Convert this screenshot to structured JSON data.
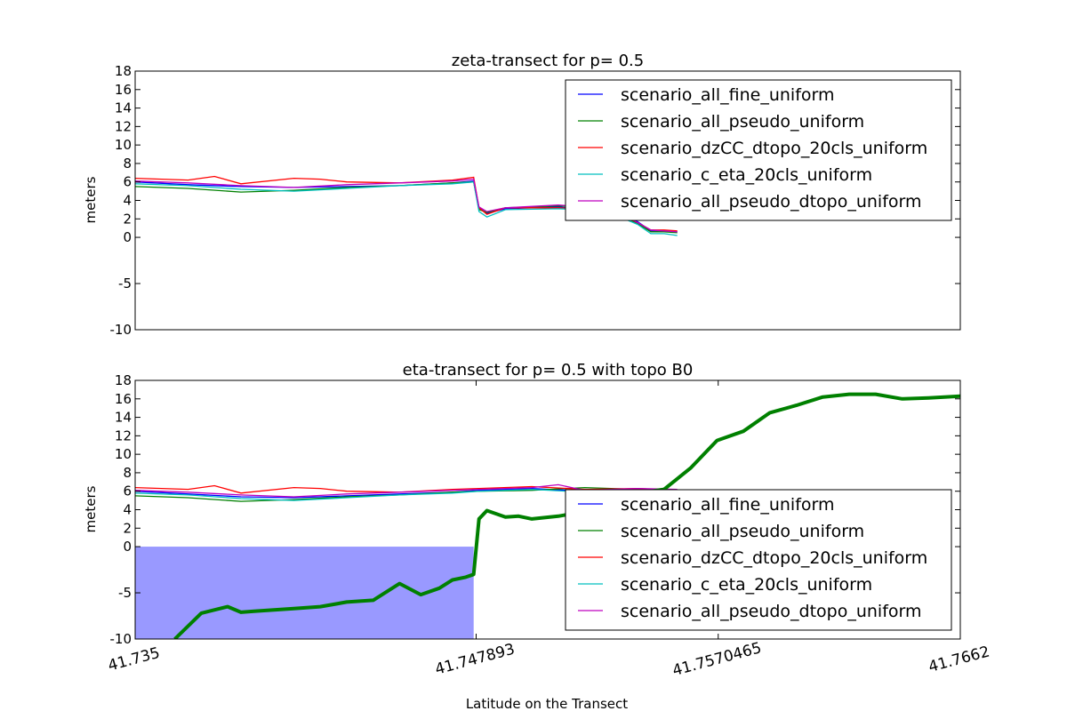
{
  "xlabel": "Latitude on the Transect",
  "chart_data": [
    {
      "type": "line",
      "title": "zeta-transect for p= 0.5",
      "ylabel": "meters",
      "xlim": [
        41.735,
        41.7662
      ],
      "ylim": [
        -10,
        18
      ],
      "yticks": [
        "18",
        "16",
        "14",
        "12",
        "10",
        "8",
        "6",
        "4",
        "2",
        "0",
        "-5",
        "-10"
      ],
      "legend": {
        "position": "top-right",
        "entries": [
          {
            "name": "scenario_all_fine_uniform",
            "color": "#0000ff"
          },
          {
            "name": "scenario_all_pseudo_uniform",
            "color": "#008000"
          },
          {
            "name": "scenario_dzCC_dtopo_20cls_uniform",
            "color": "#ff0000"
          },
          {
            "name": "scenario_c_eta_20cls_uniform",
            "color": "#00bfbf"
          },
          {
            "name": "scenario_all_pseudo_dtopo_uniform",
            "color": "#bf00bf"
          }
        ]
      },
      "series": [
        {
          "name": "scenario_all_fine_uniform",
          "color": "#0000ff",
          "x": [
            41.735,
            41.737,
            41.739,
            41.741,
            41.743,
            41.745,
            41.747,
            41.7478,
            41.748,
            41.7483,
            41.749,
            41.751,
            41.752,
            41.753,
            41.754,
            41.7545,
            41.755,
            41.7555
          ],
          "y": [
            6.0,
            5.7,
            5.5,
            5.4,
            5.5,
            5.6,
            5.9,
            6.1,
            3.2,
            2.6,
            3.1,
            3.3,
            3.0,
            2.8,
            1.7,
            0.7,
            0.7,
            0.6
          ]
        },
        {
          "name": "scenario_all_pseudo_uniform",
          "color": "#008000",
          "x": [
            41.735,
            41.737,
            41.739,
            41.741,
            41.743,
            41.745,
            41.747,
            41.7478,
            41.748,
            41.7483,
            41.749,
            41.751,
            41.752,
            41.753,
            41.754,
            41.7545,
            41.755,
            41.7555
          ],
          "y": [
            5.5,
            5.3,
            4.9,
            5.1,
            5.4,
            5.6,
            5.9,
            6.0,
            3.0,
            2.7,
            3.2,
            3.4,
            3.3,
            2.9,
            1.5,
            0.6,
            0.6,
            0.5
          ]
        },
        {
          "name": "scenario_dzCC_dtopo_20cls_uniform",
          "color": "#ff0000",
          "x": [
            41.735,
            41.737,
            41.738,
            41.739,
            41.741,
            41.742,
            41.743,
            41.745,
            41.747,
            41.7478,
            41.748,
            41.7483,
            41.749,
            41.751,
            41.752,
            41.753,
            41.754,
            41.7545,
            41.755,
            41.7555
          ],
          "y": [
            6.4,
            6.2,
            6.6,
            5.8,
            6.4,
            6.3,
            6.0,
            5.9,
            6.2,
            6.5,
            3.2,
            2.5,
            3.2,
            3.2,
            3.1,
            2.8,
            1.6,
            0.8,
            0.8,
            0.7
          ]
        },
        {
          "name": "scenario_c_eta_20cls_uniform",
          "color": "#00bfbf",
          "x": [
            41.735,
            41.737,
            41.739,
            41.741,
            41.743,
            41.745,
            41.747,
            41.7478,
            41.748,
            41.7483,
            41.749,
            41.751,
            41.752,
            41.753,
            41.754,
            41.7545,
            41.755,
            41.7555
          ],
          "y": [
            5.8,
            5.6,
            5.2,
            5.0,
            5.3,
            5.6,
            5.8,
            6.0,
            2.8,
            2.2,
            3.0,
            3.1,
            3.0,
            2.6,
            1.4,
            0.4,
            0.4,
            0.2
          ]
        },
        {
          "name": "scenario_all_pseudo_dtopo_uniform",
          "color": "#bf00bf",
          "x": [
            41.735,
            41.737,
            41.739,
            41.741,
            41.743,
            41.745,
            41.747,
            41.7478,
            41.748,
            41.7483,
            41.749,
            41.751,
            41.752,
            41.753,
            41.754,
            41.7545,
            41.755,
            41.7555
          ],
          "y": [
            6.1,
            5.9,
            5.6,
            5.4,
            5.7,
            5.9,
            6.1,
            6.3,
            3.3,
            2.8,
            3.2,
            3.5,
            3.3,
            3.0,
            1.6,
            0.8,
            0.7,
            0.6
          ]
        }
      ]
    },
    {
      "type": "line",
      "title": "eta-transect for p= 0.5 with topo B0",
      "ylabel": "meters",
      "xlabel": "Latitude on the Transect",
      "xlim": [
        41.735,
        41.7662
      ],
      "ylim": [
        -10,
        18
      ],
      "xticks": [
        "41.735",
        "41.747893",
        "41.7570465",
        "41.7662"
      ],
      "yticks": [
        "18",
        "16",
        "14",
        "12",
        "10",
        "8",
        "6",
        "4",
        "2",
        "0",
        "-5",
        "-10"
      ],
      "legend": {
        "position": "lower-right",
        "entries": [
          {
            "name": "scenario_all_fine_uniform",
            "color": "#0000ff"
          },
          {
            "name": "scenario_all_pseudo_uniform",
            "color": "#008000"
          },
          {
            "name": "scenario_dzCC_dtopo_20cls_uniform",
            "color": "#ff0000"
          },
          {
            "name": "scenario_c_eta_20cls_uniform",
            "color": "#00bfbf"
          },
          {
            "name": "scenario_all_pseudo_dtopo_uniform",
            "color": "#bf00bf"
          }
        ]
      },
      "fill": {
        "color": "#9999ff",
        "x": [
          41.735,
          41.7478
        ],
        "y": [
          -10,
          0
        ]
      },
      "topo": {
        "color": "#008000",
        "x": [
          41.7365,
          41.7375,
          41.7385,
          41.739,
          41.7395,
          41.74,
          41.741,
          41.742,
          41.743,
          41.744,
          41.745,
          41.7458,
          41.7465,
          41.747,
          41.7475,
          41.7478,
          41.748,
          41.7483,
          41.749,
          41.7495,
          41.75,
          41.751,
          41.752,
          41.7525,
          41.753,
          41.754,
          41.7545,
          41.755,
          41.756,
          41.757,
          41.758,
          41.759,
          41.76,
          41.761,
          41.762,
          41.763,
          41.764,
          41.765,
          41.7662
        ],
        "y": [
          -10,
          -7.2,
          -6.5,
          -7.1,
          -7.0,
          -6.9,
          -6.7,
          -6.5,
          -6.0,
          -5.8,
          -4.0,
          -5.2,
          -4.5,
          -3.6,
          -3.3,
          -3.0,
          3.0,
          3.9,
          3.2,
          3.3,
          3.0,
          3.3,
          3.8,
          4.0,
          4.2,
          5.0,
          6.0,
          6.2,
          8.5,
          11.5,
          12.5,
          14.5,
          15.3,
          16.2,
          16.5,
          16.5,
          16.0,
          16.1,
          16.3
        ]
      },
      "series": [
        {
          "name": "scenario_all_fine_uniform",
          "color": "#0000ff",
          "x": [
            41.735,
            41.737,
            41.739,
            41.741,
            41.743,
            41.745,
            41.747,
            41.748,
            41.75,
            41.752,
            41.754,
            41.7555
          ],
          "y": [
            6.0,
            5.7,
            5.4,
            5.3,
            5.5,
            5.7,
            5.9,
            6.1,
            6.3,
            6.0,
            6.1,
            6.0
          ]
        },
        {
          "name": "scenario_all_pseudo_uniform",
          "color": "#008000",
          "x": [
            41.735,
            41.737,
            41.739,
            41.741,
            41.743,
            41.745,
            41.747,
            41.748,
            41.75,
            41.752,
            41.754,
            41.7555
          ],
          "y": [
            5.5,
            5.3,
            4.9,
            5.1,
            5.4,
            5.6,
            5.9,
            6.0,
            6.1,
            6.4,
            6.2,
            6.1
          ]
        },
        {
          "name": "scenario_dzCC_dtopo_20cls_uniform",
          "color": "#ff0000",
          "x": [
            41.735,
            41.737,
            41.738,
            41.739,
            41.741,
            41.742,
            41.743,
            41.745,
            41.747,
            41.748,
            41.75,
            41.752,
            41.754,
            41.7555
          ],
          "y": [
            6.4,
            6.2,
            6.6,
            5.8,
            6.4,
            6.3,
            6.0,
            5.9,
            6.2,
            6.3,
            6.5,
            6.2,
            6.3,
            6.1
          ]
        },
        {
          "name": "scenario_c_eta_20cls_uniform",
          "color": "#00bfbf",
          "x": [
            41.735,
            41.737,
            41.739,
            41.741,
            41.743,
            41.745,
            41.747,
            41.748,
            41.75,
            41.752,
            41.754,
            41.7555
          ],
          "y": [
            5.8,
            5.6,
            5.2,
            5.0,
            5.3,
            5.6,
            5.8,
            6.0,
            6.2,
            5.9,
            6.0,
            5.9
          ]
        },
        {
          "name": "scenario_all_pseudo_dtopo_uniform",
          "color": "#bf00bf",
          "x": [
            41.735,
            41.737,
            41.739,
            41.741,
            41.743,
            41.745,
            41.747,
            41.748,
            41.75,
            41.751,
            41.752,
            41.754,
            41.7555
          ],
          "y": [
            6.1,
            5.9,
            5.6,
            5.4,
            5.7,
            5.9,
            6.1,
            6.2,
            6.4,
            6.7,
            6.1,
            6.3,
            6.2
          ]
        }
      ]
    }
  ]
}
